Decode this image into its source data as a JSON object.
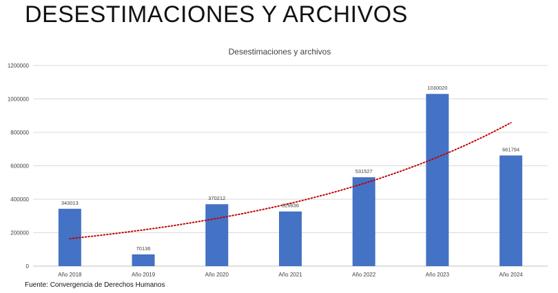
{
  "page": {
    "title": "DESESTIMACIONES Y ARCHIVOS",
    "source": "Fuente: Convergencia de Derechos Humanos"
  },
  "chart_data": {
    "type": "bar",
    "title": "Desestimaciones y archivos",
    "xlabel": "",
    "ylabel": "",
    "categories": [
      "Año 2018",
      "Año 2019",
      "Año 2020",
      "Año 2021",
      "Año 2022",
      "Año 2023",
      "Año 2024"
    ],
    "series": [
      {
        "values": [
          343013,
          70136,
          370212,
          326836,
          531527,
          1030020,
          661794
        ]
      }
    ],
    "ylim": [
      0,
      1200000
    ],
    "yticks": [
      0,
      200000,
      400000,
      600000,
      800000,
      1000000,
      1200000
    ],
    "grid": true,
    "legend": "none",
    "trendline": {
      "type": "exponential",
      "style": "dotted"
    },
    "colors": {
      "bar": "#4472c4",
      "trendline": "#c00000",
      "grid": "#d9d9d9"
    }
  }
}
